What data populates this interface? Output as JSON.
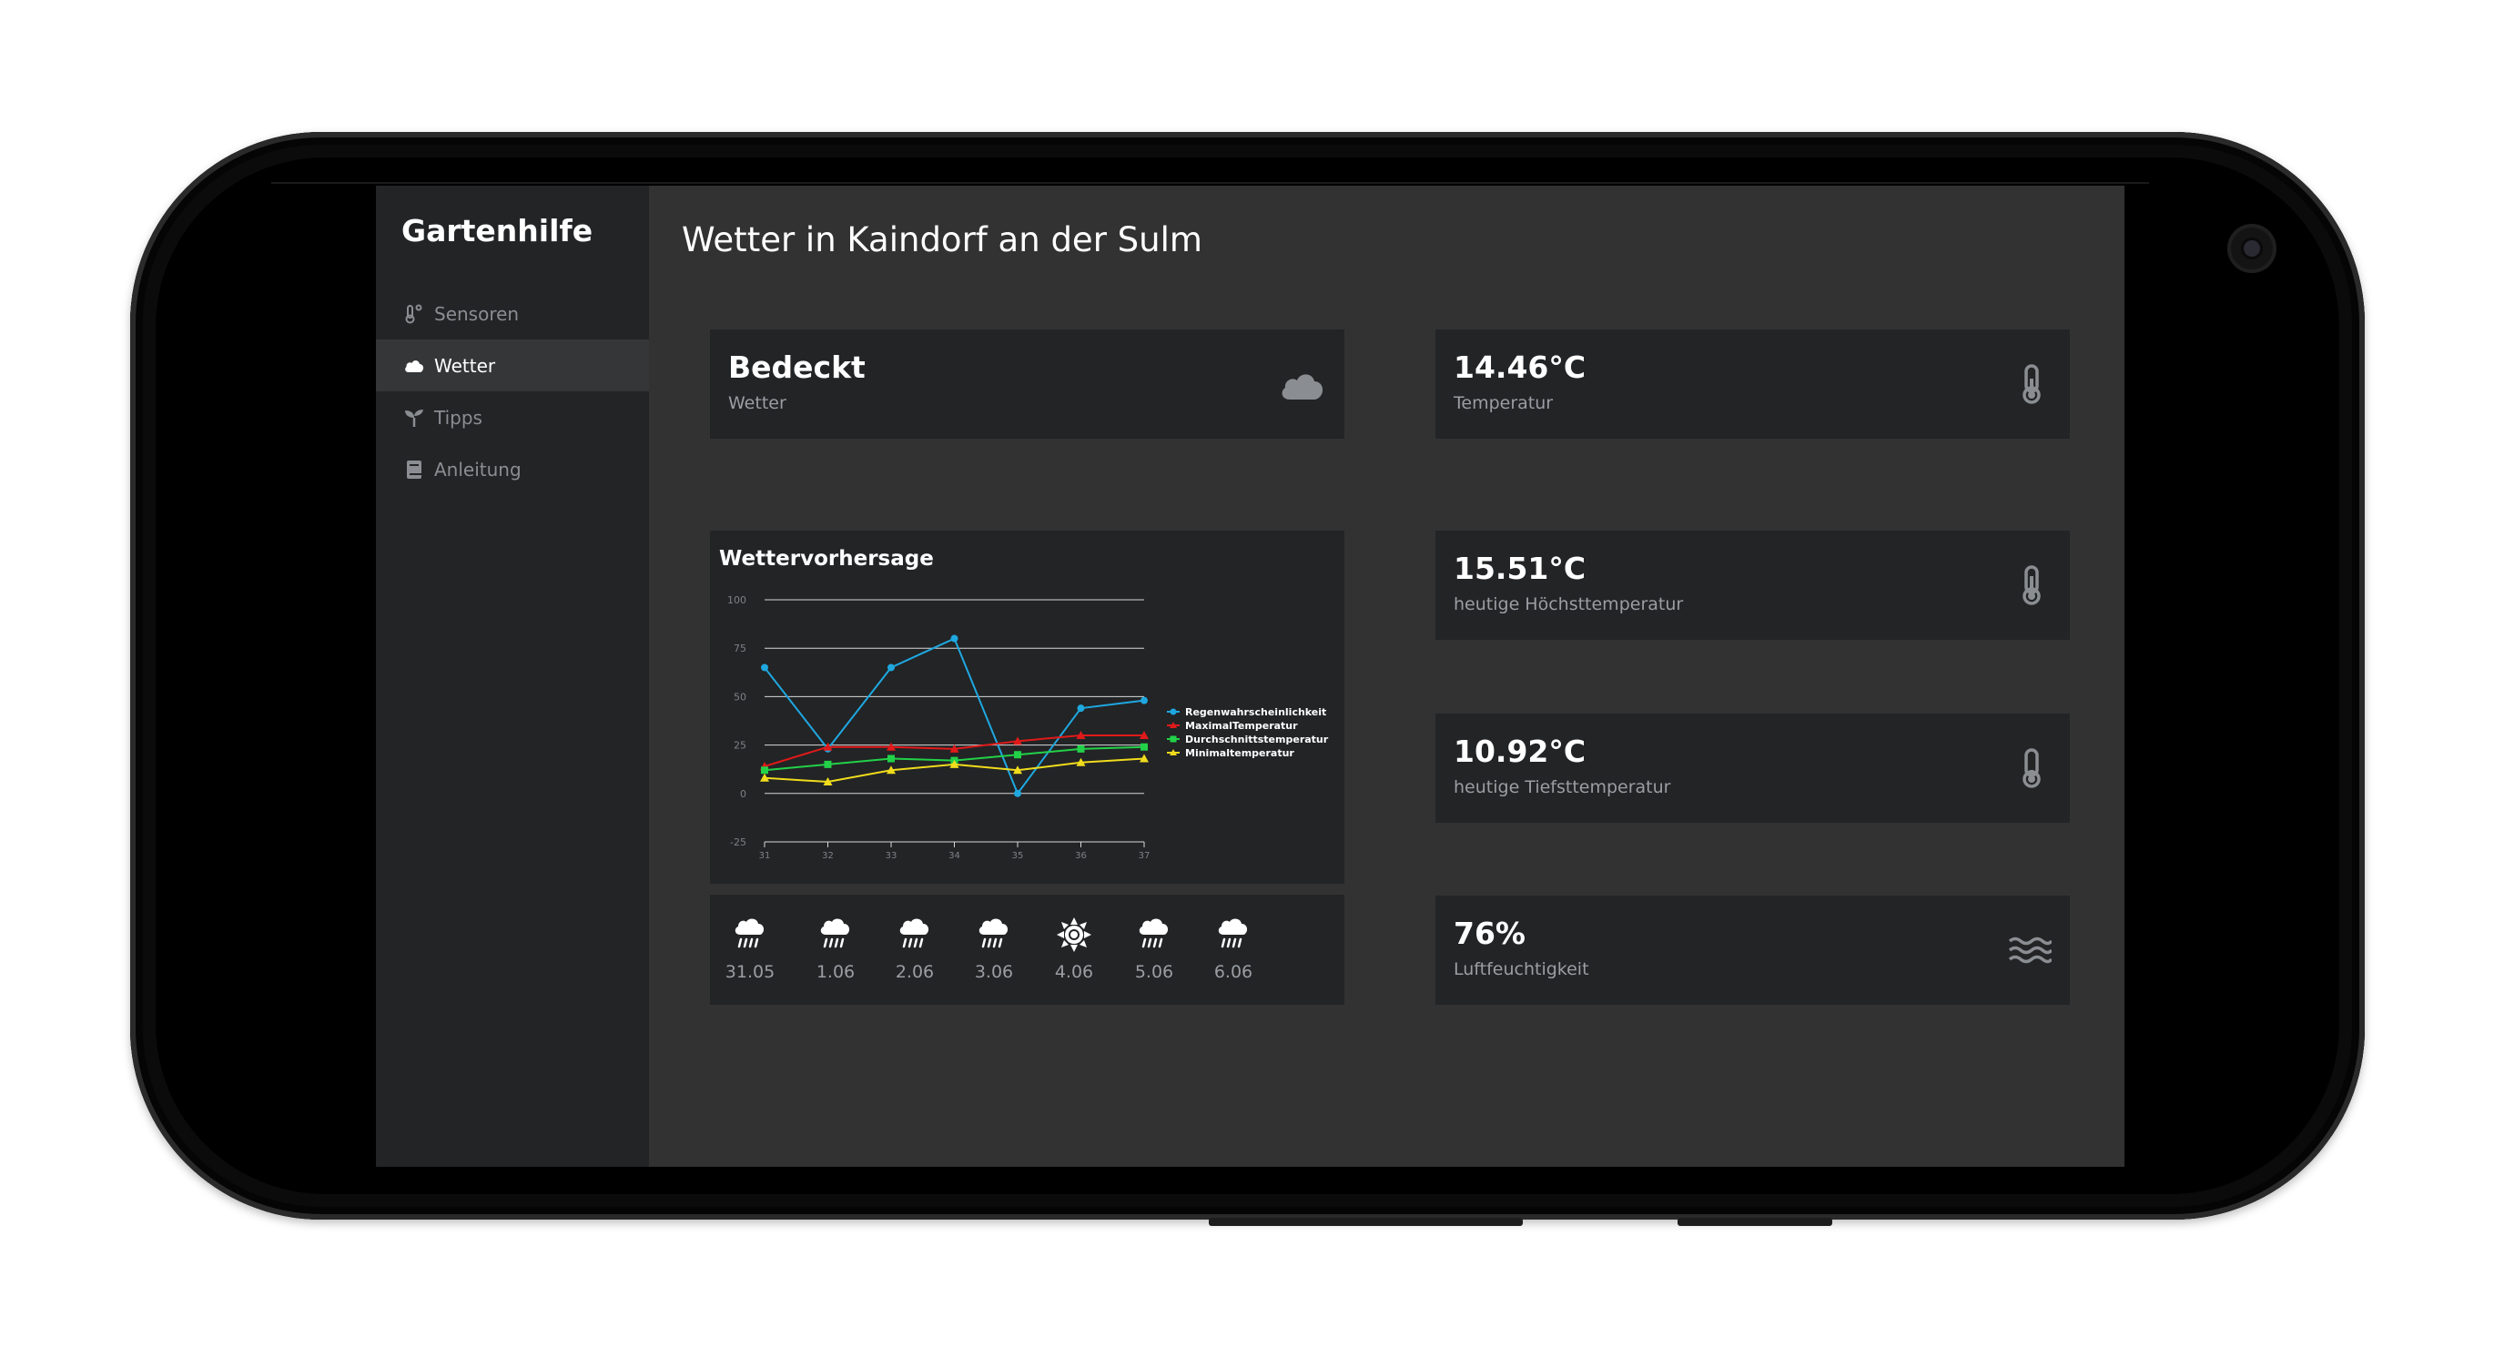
{
  "sidebar": {
    "brand": "Gartenhilfe",
    "items": [
      {
        "label": "Sensoren",
        "icon": "thermometer-degree-icon",
        "active": false
      },
      {
        "label": "Wetter",
        "icon": "cloud-icon",
        "active": true
      },
      {
        "label": "Tipps",
        "icon": "seedling-icon",
        "active": false
      },
      {
        "label": "Anleitung",
        "icon": "book-icon",
        "active": false
      }
    ]
  },
  "main": {
    "title": "Wetter in Kaindorf an der Sulm",
    "weather": {
      "value": "Bedeckt",
      "label": "Wetter",
      "icon": "cloud-icon"
    },
    "temperature": {
      "value": "14.46°C",
      "label": "Temperatur",
      "icon": "thermometer-icon"
    },
    "max_temperature": {
      "value": "15.51°C",
      "label": "heutige Höchsttemperatur",
      "icon": "thermometer-icon"
    },
    "min_temperature": {
      "value": "10.92°C",
      "label": "heutige Tiefsttemperatur",
      "icon": "thermometer-icon"
    },
    "humidity": {
      "value": "76%",
      "label": "Luftfeuchtigkeit",
      "icon": "water-waves-icon"
    },
    "forecast_title": "Wettervorhersage",
    "daily": [
      {
        "date": "31.05",
        "icon": "rain-cloud-icon"
      },
      {
        "date": "1.06",
        "icon": "rain-cloud-icon"
      },
      {
        "date": "2.06",
        "icon": "rain-cloud-icon"
      },
      {
        "date": "3.06",
        "icon": "rain-cloud-icon"
      },
      {
        "date": "4.06",
        "icon": "sun-icon"
      },
      {
        "date": "5.06",
        "icon": "rain-cloud-icon"
      },
      {
        "date": "6.06",
        "icon": "rain-cloud-icon"
      }
    ]
  },
  "chart_data": {
    "type": "line",
    "title": "Wettervorhersage",
    "x": [
      "31",
      "32",
      "33",
      "34",
      "35",
      "36",
      "37"
    ],
    "ylim": [
      -25,
      100
    ],
    "yticks": [
      100,
      75,
      50,
      25,
      0,
      -25
    ],
    "grid": true,
    "legend_position": "right",
    "series": [
      {
        "name": "Regenwahrscheinlichkeit",
        "color": "#1fa8e0",
        "marker": "circle",
        "values": [
          65,
          23,
          65,
          80,
          0,
          44,
          48
        ]
      },
      {
        "name": "MaximalTemperatur",
        "color": "#e01a1a",
        "marker": "triangle",
        "values": [
          14,
          24,
          24,
          23,
          27,
          30,
          30
        ]
      },
      {
        "name": "Durchschnittstemperatur",
        "color": "#22d148",
        "marker": "square",
        "values": [
          12,
          15,
          18,
          17,
          20,
          23,
          24
        ]
      },
      {
        "name": "Minimaltemperatur",
        "color": "#f0dc1c",
        "marker": "triangle",
        "values": [
          8,
          6,
          12,
          15,
          12,
          16,
          18
        ]
      }
    ]
  }
}
